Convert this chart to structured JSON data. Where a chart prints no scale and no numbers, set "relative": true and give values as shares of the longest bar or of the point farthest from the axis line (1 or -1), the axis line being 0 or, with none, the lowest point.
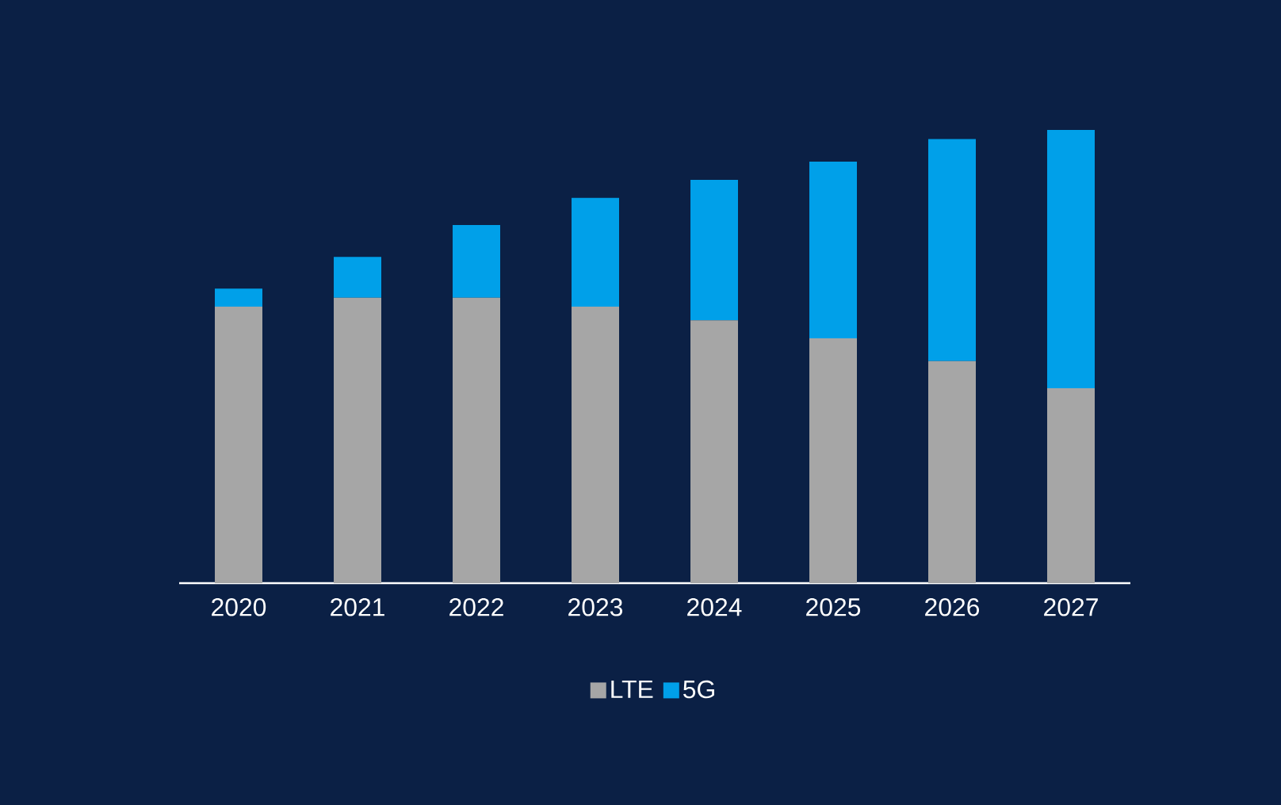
{
  "chart_data": {
    "type": "bar",
    "stacked": true,
    "relative": true,
    "legend": "bottom",
    "categories": [
      "2020",
      "2021",
      "2022",
      "2023",
      "2024",
      "2025",
      "2026",
      "2027"
    ],
    "series": [
      {
        "name": "LTE",
        "color": "#a6a6a6",
        "values": [
          0.61,
          0.63,
          0.63,
          0.61,
          0.58,
          0.54,
          0.49,
          0.43
        ]
      },
      {
        "name": "5G",
        "color": "#00a0e9",
        "values": [
          0.04,
          0.09,
          0.16,
          0.24,
          0.31,
          0.39,
          0.49,
          0.57
        ]
      }
    ]
  }
}
